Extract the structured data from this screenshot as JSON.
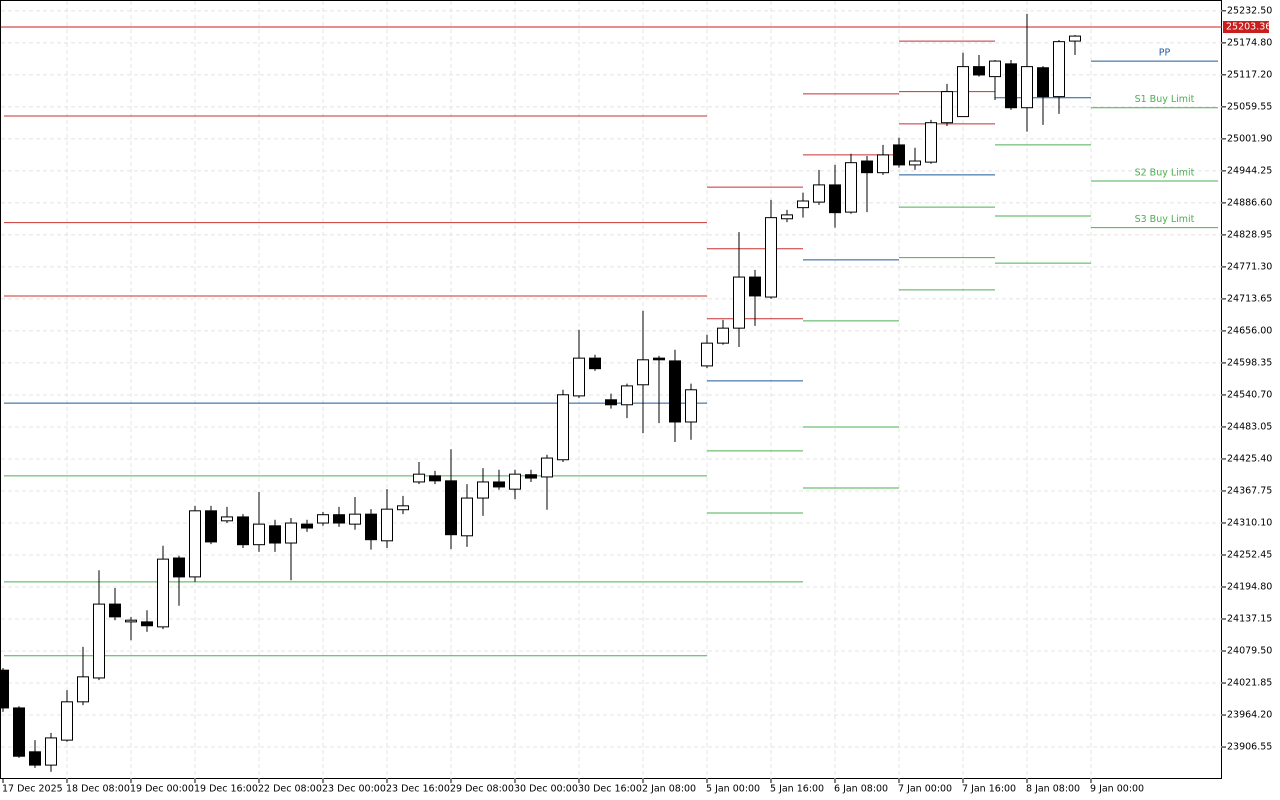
{
  "chart_data": {
    "type": "candlestick",
    "categories": [
      "17 Dec 2025",
      null,
      null,
      null,
      "18 Dec 08:00",
      null,
      null,
      null,
      "19 Dec 00:00",
      null,
      null,
      null,
      "19 Dec 16:00",
      null,
      null,
      null,
      "22 Dec 08:00",
      null,
      null,
      null,
      "23 Dec 00:00",
      null,
      null,
      null,
      "23 Dec 16:00",
      null,
      null,
      null,
      "29 Dec 08:00",
      null,
      null,
      null,
      "30 Dec 00:00",
      null,
      null,
      null,
      "30 Dec 16:00",
      null,
      null,
      null,
      "2 Jan 08:00",
      null,
      null,
      null,
      "5 Jan 00:00",
      null,
      null,
      null,
      "5 Jan 16:00",
      null,
      null,
      null,
      "6 Jan 08:00",
      null,
      null,
      null,
      "7 Jan 00:00",
      null,
      null,
      null,
      "7 Jan 16:00",
      null,
      null,
      null,
      "8 Jan 08:00",
      null,
      null,
      null,
      "9 Jan 00:00"
    ],
    "open": [
      24045,
      23977,
      23898,
      23874,
      23919,
      23988,
      24031,
      24164,
      24132,
      24132,
      24123,
      24247,
      24213,
      24332,
      24314,
      24321,
      24271,
      24305,
      24274,
      24308,
      24310,
      24325,
      24308,
      24326,
      24278,
      24334,
      24384,
      24395,
      24386,
      24287,
      24355,
      24384,
      24371,
      24397,
      24393,
      24424,
      24539,
      24607,
      24532,
      24523,
      24559,
      24607,
      24602,
      24492,
      24593,
      24634,
      24661,
      24753,
      24717,
      24858,
      24878,
      24888,
      24919,
      24870,
      24962,
      24941,
      24991,
      24955,
      24960,
      25031,
      25042,
      25132,
      25114,
      25137,
      25058,
      25130,
      25078,
      25178,
      null
    ],
    "high": [
      24049,
      23980,
      23919,
      23932,
      24009,
      24087,
      24225,
      24193,
      24141,
      24153,
      24269,
      24251,
      24341,
      24341,
      24339,
      24326,
      24366,
      24316,
      24319,
      24316,
      24330,
      24339,
      24357,
      24335,
      24371,
      24359,
      24420,
      24404,
      24443,
      24380,
      24409,
      24406,
      24406,
      24406,
      24433,
      24550,
      24658,
      24613,
      24543,
      24561,
      24692,
      24611,
      24622,
      24561,
      24649,
      24676,
      24834,
      24766,
      24892,
      24874,
      24905,
      24946,
      24955,
      24975,
      24971,
      24991,
      25004,
      24986,
      25036,
      25101,
      25157,
      25153,
      25144,
      25144,
      25227,
      25133,
      25180,
      25189,
      null
    ],
    "low": [
      23970,
      23887,
      23869,
      23862,
      23916,
      23982,
      24027,
      24135,
      24099,
      24114,
      24119,
      24161,
      24204,
      24272,
      24310,
      24265,
      24258,
      24258,
      24207,
      24294,
      24305,
      24303,
      24298,
      24262,
      24265,
      24326,
      24380,
      24380,
      24263,
      24267,
      24323,
      24370,
      24353,
      24384,
      24334,
      24420,
      24535,
      24584,
      24516,
      24499,
      24472,
      24490,
      24456,
      24460,
      24589,
      24631,
      24627,
      24665,
      24714,
      24852,
      24860,
      24883,
      24842,
      24867,
      24870,
      24937,
      24950,
      24946,
      24957,
      25025,
      25042,
      25114,
      25072,
      25054,
      25015,
      25027,
      25047,
      25153,
      null
    ],
    "close": [
      23977,
      23890,
      23874,
      23923,
      23988,
      24033,
      24164,
      24141,
      24135,
      24125,
      24245,
      24213,
      24332,
      24276,
      24321,
      24271,
      24308,
      24274,
      24310,
      24301,
      24325,
      24310,
      24326,
      24280,
      24335,
      24341,
      24398,
      24386,
      24289,
      24355,
      24384,
      24375,
      24398,
      24391,
      24427,
      24541,
      24607,
      24588,
      24523,
      24557,
      24604,
      24604,
      24492,
      24550,
      24634,
      24661,
      24753,
      24719,
      24860,
      24865,
      24890,
      24919,
      24869,
      24959,
      24941,
      24973,
      24955,
      24962,
      25031,
      25087,
      25132,
      25117,
      25142,
      25058,
      25132,
      25078,
      25177,
      25187,
      null
    ],
    "up_color": "#ffffff",
    "down_color": "#000000",
    "ylim": [
      23849,
      25252
    ],
    "yticks": [
      {
        "value": 25232.5,
        "label": "25232.50"
      },
      {
        "value": 25174.8,
        "label": "25174.80"
      },
      {
        "value": 25117.2,
        "label": "25117.20"
      },
      {
        "value": 25059.55,
        "label": "25059.55"
      },
      {
        "value": 25001.9,
        "label": "25001.90"
      },
      {
        "value": 24944.25,
        "label": "24944.25"
      },
      {
        "value": 24886.6,
        "label": "24886.60"
      },
      {
        "value": 24828.95,
        "label": "24828.95"
      },
      {
        "value": 24771.3,
        "label": "24771.30"
      },
      {
        "value": 24713.65,
        "label": "24713.65"
      },
      {
        "value": 24656,
        "label": "24656.00"
      },
      {
        "value": 24598.35,
        "label": "24598.35"
      },
      {
        "value": 24540.7,
        "label": "24540.70"
      },
      {
        "value": 24483.05,
        "label": "24483.05"
      },
      {
        "value": 24425.4,
        "label": "24425.40"
      },
      {
        "value": 24367.75,
        "label": "24367.75"
      },
      {
        "value": 24310.1,
        "label": "24310.10"
      },
      {
        "value": 24252.45,
        "label": "24252.45"
      },
      {
        "value": 24194.8,
        "label": "24194.80"
      },
      {
        "value": 24137.15,
        "label": "24137.15"
      },
      {
        "value": 24079.5,
        "label": "24079.50"
      },
      {
        "value": 24021.85,
        "label": "24021.85"
      },
      {
        "value": 23964.2,
        "label": "23964.20"
      },
      {
        "value": 23906.55,
        "label": "23906.55"
      }
    ],
    "grid": true,
    "last_price": 25203.36,
    "last_price_color": "#c81e1e",
    "pivot_colors": {
      "resistance": "#c83232",
      "pivot": "#1f5a9c",
      "support": "#4caf50"
    },
    "pivots": [
      {
        "resistance": [
          25043,
          24851,
          24719
        ],
        "pivot": 24526,
        "support": [
          24395,
          24204,
          24071
        ]
      },
      {
        "resistance": [
          24915,
          24804,
          24678
        ],
        "pivot": 24566,
        "support": [
          24440,
          24328,
          24204
        ]
      },
      {
        "resistance": [
          25083,
          24973
        ],
        "pivot": 24784,
        "support": [
          24674,
          24483,
          24373
        ]
      },
      {
        "resistance": [
          25178,
          25087,
          25029
        ],
        "pivot": 24937,
        "support": [
          24879,
          24788,
          24730
        ]
      },
      {
        "resistance": [],
        "pivot": 25076,
        "support": [
          24991,
          24863,
          24778
        ]
      },
      {
        "resistance": [],
        "pivot": 25142,
        "support": [
          25058,
          24926,
          24842
        ]
      }
    ],
    "pivot_labels": {
      "pivot": "PP",
      "support": [
        "S1 Buy Limit",
        "S2 Buy Limit",
        "S3 Buy Limit"
      ]
    }
  }
}
